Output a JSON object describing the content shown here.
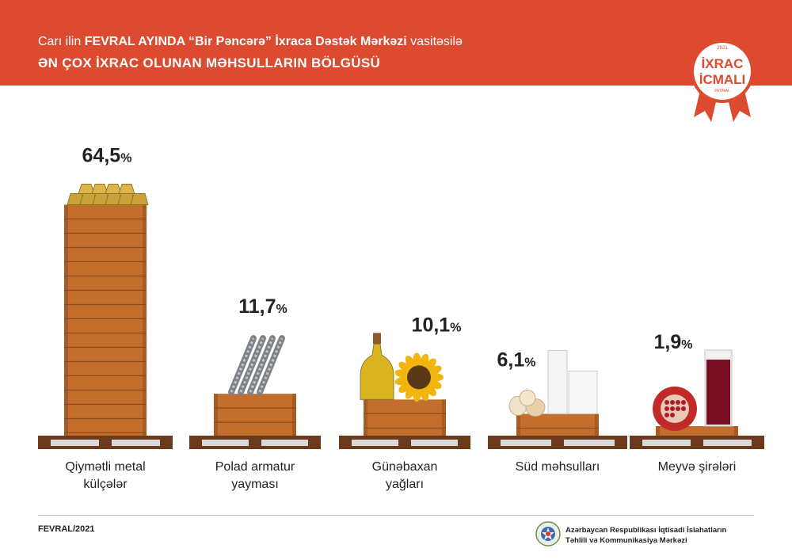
{
  "header": {
    "line1_prefix": "Carı ilin ",
    "line1_bold1": "FEVRAL AYINDA “Bir Pəncərə” İxraca Dəstək Mərkəzi",
    "line1_suffix": " vasitəsilə",
    "line2": "ƏN ÇOX İXRAC OLUNAN MƏHSULLARIN BÖLGÜSÜ"
  },
  "badge": {
    "year": "2021",
    "line1": "İXRAC",
    "line2": "İCMALI",
    "month": "FEVRAL"
  },
  "footer": {
    "date": "FEVRAL/2021",
    "org_line1": "Azərbaycan Respublikası İqtisadi İslahatların",
    "org_line2": "Təhlili və Kommunikasiya Mərkəzi"
  },
  "colors": {
    "header": "#dc4a30",
    "crate": "#c46e2d",
    "crate_dark": "#8a4a1c",
    "pallet": "#6b3a1d"
  },
  "chart_data": {
    "type": "bar",
    "categories": [
      [
        "Qiymətli metal",
        "külçələr"
      ],
      [
        "Polad armatur",
        "yayması"
      ],
      [
        "Günəbaxan",
        "yağları"
      ],
      [
        "Süd məhsulları"
      ],
      [
        "Meyvə şirələri"
      ]
    ],
    "values": [
      64.5,
      11.7,
      10.1,
      6.1,
      1.9
    ],
    "value_labels": [
      "64,5",
      "11,7",
      "10,1",
      "6,1",
      "1,9"
    ],
    "unit": "%",
    "icons": [
      "gold-bars-icon",
      "steel-rebar-icon",
      "sunflower-oil-icon",
      "dairy-icon",
      "pomegranate-juice-icon"
    ]
  }
}
